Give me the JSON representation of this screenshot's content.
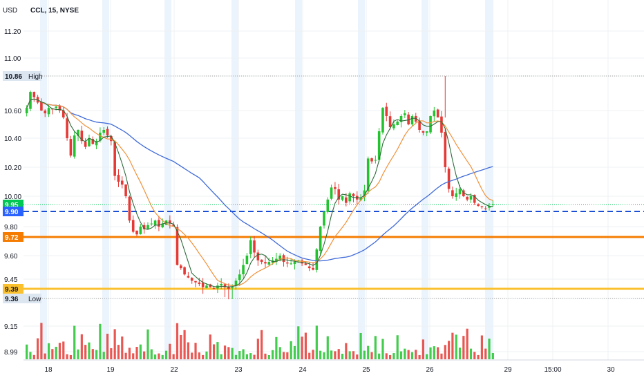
{
  "header": {
    "currency_label": "USD",
    "symbol_title": "CCL, 15, NYSE"
  },
  "chart_data": {
    "type": "candlestick",
    "symbol": "CCL",
    "interval": "15",
    "exchange": "NYSE",
    "y_axis_ticks": [
      "11.20",
      "11.00",
      "9.80",
      "9.60",
      "9.45",
      "9.15",
      "8.99"
    ],
    "x_axis_ticks": [
      "18",
      "19",
      "22",
      "23",
      "24",
      "25",
      "26",
      "29",
      "15:00",
      "30"
    ],
    "price_markers": [
      {
        "label": "10.86",
        "tag": "High",
        "value": 10.86,
        "color": "#dce6f0"
      },
      {
        "label": "10.60",
        "value": 10.6,
        "color": ""
      },
      {
        "label": "10.40",
        "value": 10.4,
        "color": ""
      },
      {
        "label": "10.20",
        "value": 10.2,
        "color": ""
      },
      {
        "label": "10.00",
        "value": 10.0,
        "color": ""
      },
      {
        "label": "9.95",
        "value": 9.95,
        "color": "#00c853"
      },
      {
        "label": "9.90",
        "value": 9.9,
        "color": "#2962ff"
      },
      {
        "label": "9.72",
        "value": 9.72,
        "color": "#f57c00"
      },
      {
        "label": "9.39",
        "value": 9.39,
        "color": "#fbc02d"
      },
      {
        "label": "9.36",
        "tag": "Low",
        "value": 9.36,
        "color": "#dce6f0"
      }
    ],
    "horizontal_levels": [
      {
        "value": 9.9,
        "color": "#1a4fd6",
        "style": "dashed"
      },
      {
        "value": 9.72,
        "color": "#f57c00",
        "style": "solid"
      },
      {
        "value": 9.39,
        "color": "#fbc02d",
        "style": "solid"
      },
      {
        "value": 10.86,
        "color": "#9e9e9e",
        "style": "dotted"
      },
      {
        "value": 9.36,
        "color": "#9e9e9e",
        "style": "dotted"
      },
      {
        "value": 9.95,
        "color": "#00c853",
        "style": "dotted"
      }
    ],
    "closes": [
      10.62,
      10.74,
      10.7,
      10.66,
      10.6,
      10.58,
      10.62,
      10.61,
      10.63,
      10.6,
      10.55,
      10.4,
      10.28,
      10.42,
      10.46,
      10.38,
      10.34,
      10.4,
      10.36,
      10.38,
      10.44,
      10.46,
      10.42,
      10.38,
      10.14,
      10.1,
      10.08,
      10.0,
      9.84,
      9.76,
      9.74,
      9.8,
      9.78,
      9.81,
      9.82,
      9.84,
      9.8,
      9.82,
      9.84,
      9.82,
      9.8,
      9.54,
      9.52,
      9.48,
      9.46,
      9.44,
      9.43,
      9.42,
      9.4,
      9.41,
      9.4,
      9.39,
      9.41,
      9.42,
      9.4,
      9.39,
      9.4,
      9.44,
      9.48,
      9.54,
      9.6,
      9.7,
      9.62,
      9.57,
      9.56,
      9.55,
      9.56,
      9.57,
      9.58,
      9.6,
      9.56,
      9.55,
      9.55,
      9.56,
      9.57,
      9.55,
      9.54,
      9.52,
      9.51,
      9.64,
      9.8,
      9.9,
      9.98,
      10.06,
      10.05,
      9.98,
      10.0,
      9.96,
      10.02,
      10.0,
      9.98,
      9.99,
      10.04,
      10.26,
      10.24,
      10.25,
      10.45,
      10.62,
      10.56,
      10.48,
      10.5,
      10.52,
      10.56,
      10.58,
      10.5,
      10.56,
      10.52,
      10.46,
      10.44,
      10.45,
      10.56,
      10.6,
      10.55,
      10.44,
      10.2,
      10.05,
      10.0,
      10.02,
      10.05,
      10.0,
      9.98,
      10.0,
      9.96,
      9.94,
      9.93,
      9.92,
      9.94,
      9.95
    ]
  }
}
